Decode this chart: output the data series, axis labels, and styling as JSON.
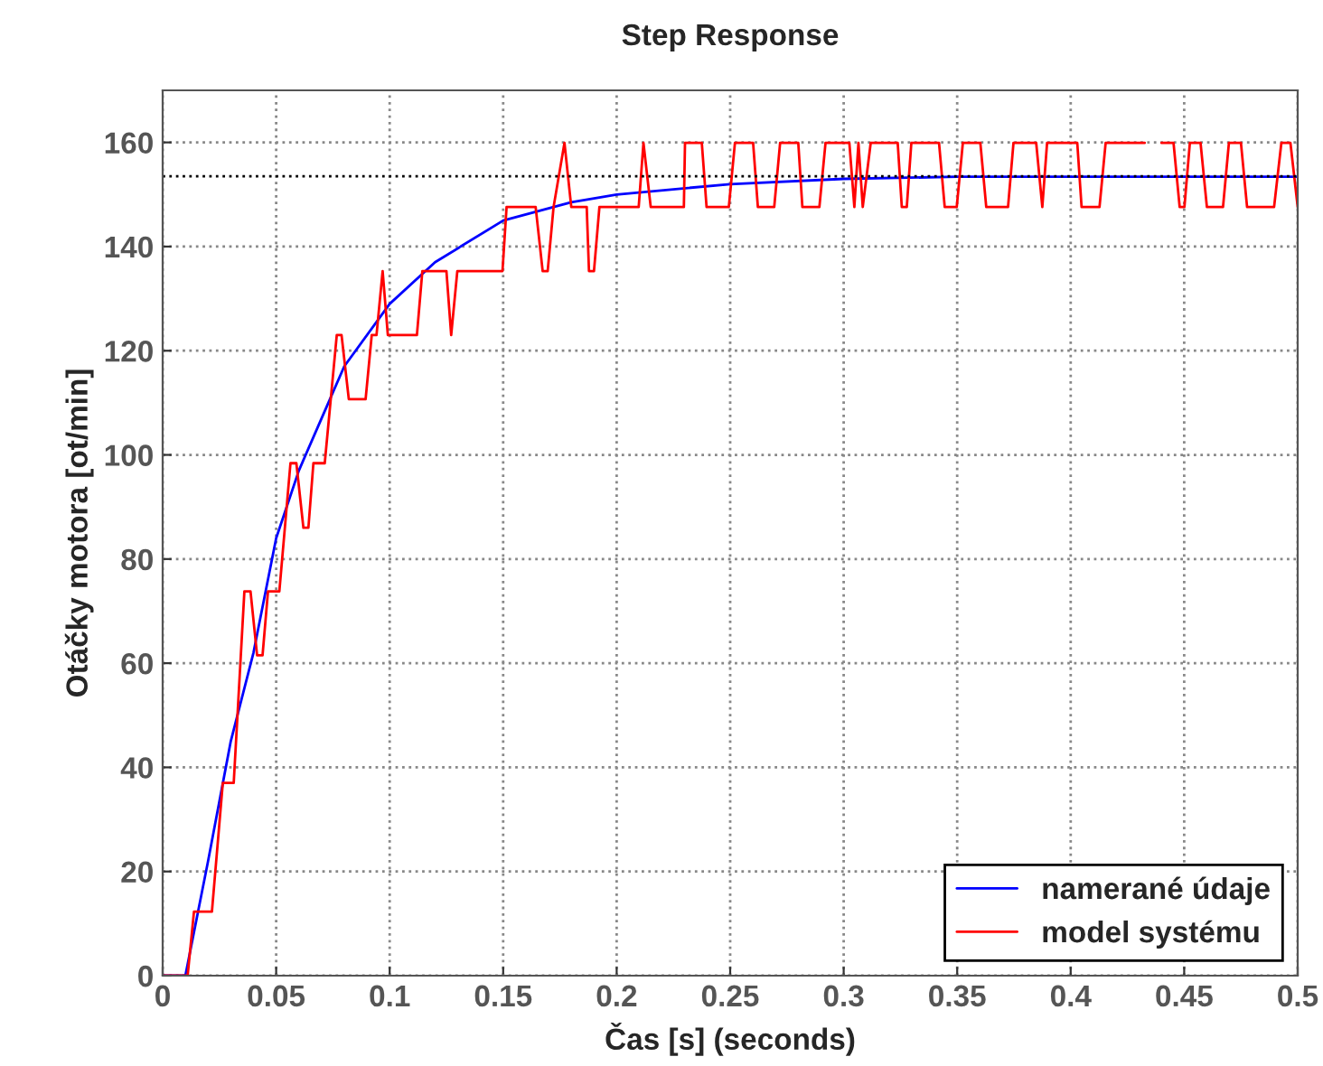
{
  "chart_data": {
    "type": "line",
    "title": "Step Response",
    "xlabel": "Čas [s] (seconds)",
    "ylabel": "Otáčky motora [ot/min]",
    "xlim": [
      0,
      0.5
    ],
    "ylim": [
      0,
      170
    ],
    "xticks": [
      0,
      0.05,
      0.1,
      0.15,
      0.2,
      0.25,
      0.3,
      0.35,
      0.4,
      0.45,
      0.5
    ],
    "yticks": [
      0,
      20,
      40,
      60,
      80,
      100,
      120,
      140,
      160
    ],
    "grid": true,
    "legend": "bottom right",
    "line_style": "solid",
    "marker": "none",
    "ref_lines": [
      {
        "axis": "y",
        "value": 153.5,
        "color": "#000000",
        "line_style": "dotted"
      }
    ],
    "series": [
      {
        "name": "namerané údaje",
        "color": "#0000ff",
        "x": [
          0,
          0.01,
          0.02,
          0.03,
          0.04,
          0.05,
          0.06,
          0.07,
          0.08,
          0.1,
          0.12,
          0.15,
          0.18,
          0.2,
          0.25,
          0.3,
          0.35,
          0.4,
          0.45,
          0.5
        ],
        "values": [
          0,
          0,
          22,
          45,
          62,
          84,
          97,
          107,
          117,
          129,
          137,
          145,
          148.5,
          150,
          152,
          153,
          153.4,
          153.4,
          153.4,
          153.4
        ]
      },
      {
        "name": "model systému",
        "color": "#ff0000",
        "x": [
          0,
          0.011,
          0.0138,
          0.0217,
          0.0265,
          0.0313,
          0.036,
          0.0387,
          0.0416,
          0.044,
          0.0464,
          0.0514,
          0.0563,
          0.0589,
          0.062,
          0.0642,
          0.0664,
          0.0714,
          0.0767,
          0.0788,
          0.082,
          0.0894,
          0.0921,
          0.0942,
          0.0969,
          0.0992,
          0.112,
          0.1144,
          0.125,
          0.1271,
          0.1298,
          0.1497,
          0.1515,
          0.1643,
          0.1674,
          0.1696,
          0.1722,
          0.177,
          0.18,
          0.1868,
          0.1878,
          0.19,
          0.1924,
          0.2097,
          0.2118,
          0.215,
          0.2296,
          0.2301,
          0.2375,
          0.2396,
          0.2494,
          0.2521,
          0.2601,
          0.2622,
          0.2694,
          0.272,
          0.28,
          0.2818,
          0.2893,
          0.292,
          0.3025,
          0.3047,
          0.3065,
          0.3084,
          0.3119,
          0.3238,
          0.3256,
          0.3278,
          0.3298,
          0.342,
          0.3445,
          0.3498,
          0.3525,
          0.3602,
          0.3628,
          0.3724,
          0.3748,
          0.3848,
          0.3875,
          0.3896,
          0.4029,
          0.4048,
          0.4127,
          0.4154,
          0.4326,
          0.4347,
          0.4379,
          0.44,
          0.4453,
          0.448,
          0.4501,
          0.4525,
          0.4572,
          0.46,
          0.4671,
          0.4697,
          0.475,
          0.4777,
          0.4896,
          0.4928,
          0.4968,
          0.5
        ],
        "values": [
          0,
          0,
          12.3,
          12.3,
          37,
          37,
          73.8,
          73.8,
          61.5,
          61.5,
          73.8,
          73.8,
          98.4,
          98.4,
          86,
          86,
          98.4,
          98.4,
          123,
          123,
          110.7,
          110.7,
          123,
          123,
          135.3,
          123,
          123,
          135.3,
          135.3,
          123,
          135.3,
          135.3,
          147.6,
          147.6,
          135.3,
          135.3,
          147.6,
          159.9,
          147.6,
          147.6,
          135.3,
          135.3,
          147.6,
          147.6,
          159.9,
          147.6,
          147.6,
          159.9,
          159.9,
          147.6,
          147.6,
          159.9,
          159.9,
          147.6,
          147.6,
          159.9,
          159.9,
          147.6,
          147.6,
          159.9,
          159.9,
          147.6,
          159.9,
          147.6,
          159.9,
          159.9,
          147.6,
          147.6,
          159.9,
          159.9,
          147.6,
          147.6,
          159.9,
          159.9,
          147.6,
          147.6,
          159.9,
          159.9,
          147.6,
          159.9,
          159.9,
          147.6,
          147.6,
          159.9,
          159.9,
          null,
          null,
          159.9,
          159.9,
          147.6,
          147.6,
          159.9,
          159.9,
          147.6,
          147.6,
          159.9,
          159.9,
          147.6,
          147.6,
          159.9,
          159.9,
          147.6
        ]
      }
    ]
  }
}
